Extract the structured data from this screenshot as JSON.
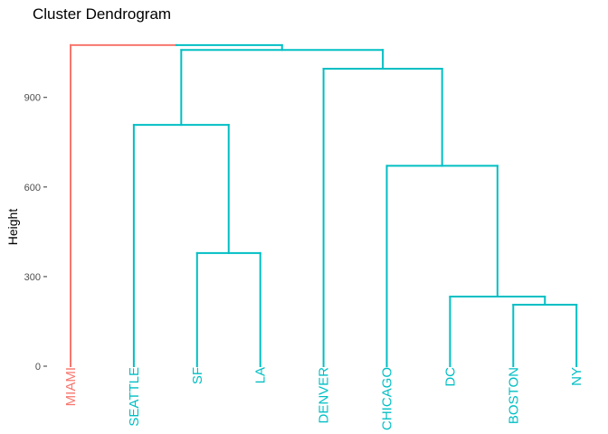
{
  "chart_data": {
    "type": "dendrogram",
    "title": "Cluster Dendrogram",
    "xlabel": "",
    "ylabel": "Height",
    "ylim": [
      0,
      1080
    ],
    "yticks": [
      0,
      300,
      600,
      900
    ],
    "grid": false,
    "leaves": [
      "MIAMI",
      "SEATTLE",
      "SF",
      "LA",
      "DENVER",
      "CHICAGO",
      "DC",
      "BOSTON",
      "NY"
    ],
    "clusters": [
      {
        "name": "1",
        "color": "#F8766D",
        "leaves": [
          "MIAMI"
        ]
      },
      {
        "name": "2",
        "color": "#00BFC4",
        "leaves": [
          "SEATTLE",
          "SF",
          "LA",
          "DENVER",
          "CHICAGO",
          "DC",
          "BOSTON",
          "NY"
        ]
      }
    ],
    "merges": [
      {
        "left": "BOSTON",
        "right": "NY",
        "height": 206
      },
      {
        "left": "DC",
        "right": "BOSTON+NY",
        "height": 233
      },
      {
        "left": "SF",
        "right": "LA",
        "height": 379
      },
      {
        "left": "CHICAGO",
        "right": "DC+BOSTON+NY",
        "height": 671
      },
      {
        "left": "SEATTLE",
        "right": "SF+LA",
        "height": 808
      },
      {
        "left": "DENVER",
        "right": "CHICAGO+DC+BOSTON+NY",
        "height": 996
      },
      {
        "left": "SEATTLE+SF+LA",
        "right": "DENVER+CHICAGO+DC+BOSTON+NY",
        "height": 1059
      },
      {
        "left": "MIAMI",
        "right": "SEATTLE+SF+LA+DENVER+CHICAGO+DC+BOSTON+NY",
        "height": 1075
      }
    ],
    "colors": {
      "text": "#000000",
      "tick": "#4d4d4d"
    }
  }
}
